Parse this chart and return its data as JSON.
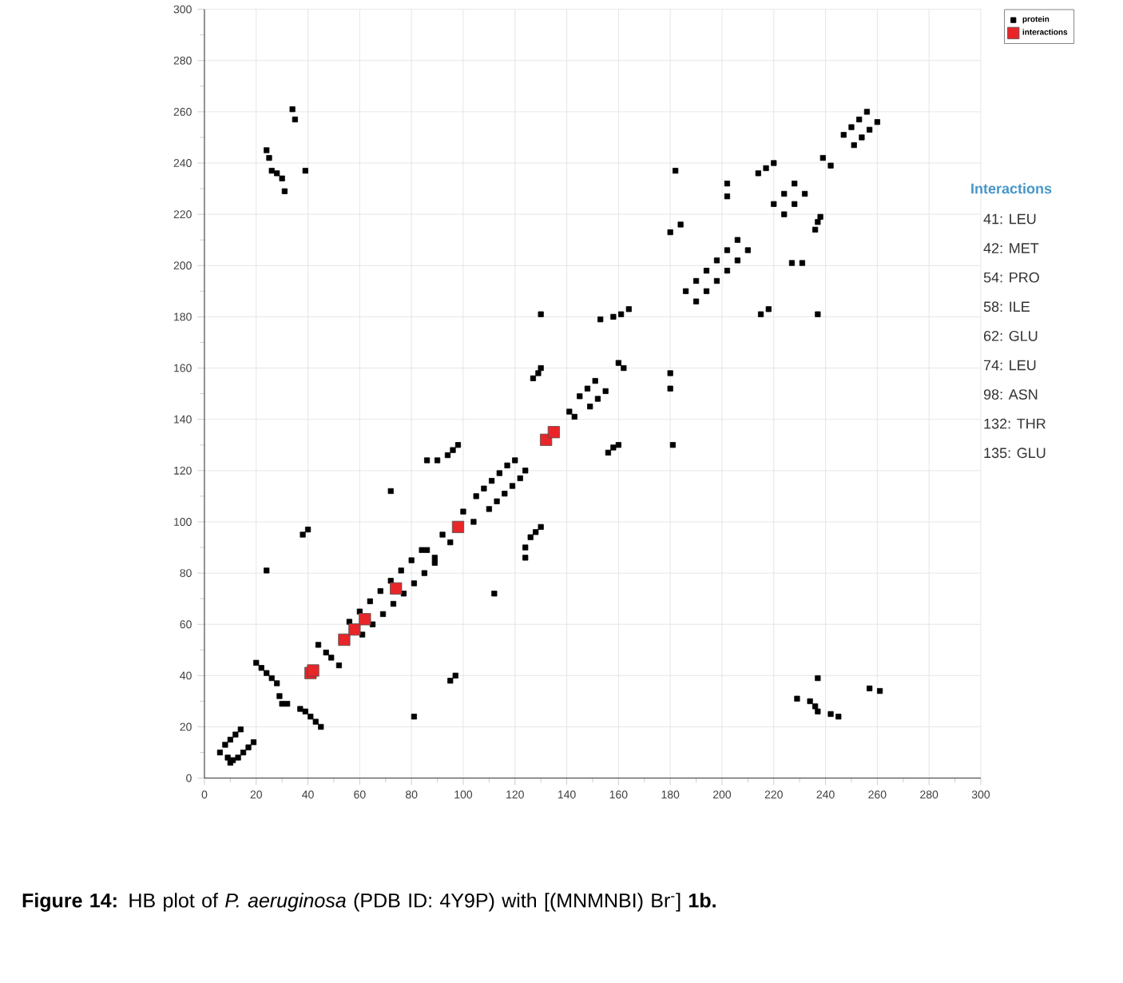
{
  "chart_data": {
    "type": "scatter",
    "marker": "square",
    "grid": true,
    "legend": "top right",
    "xlim": [
      0,
      300
    ],
    "ylim": [
      0,
      300
    ],
    "xticks": [
      0,
      20,
      40,
      60,
      80,
      100,
      120,
      140,
      160,
      180,
      200,
      220,
      240,
      260,
      280,
      300
    ],
    "yticks": [
      0,
      20,
      40,
      60,
      80,
      100,
      120,
      140,
      160,
      180,
      200,
      220,
      240,
      260,
      280,
      300
    ],
    "series": [
      {
        "name": "protein",
        "color": "#000000",
        "x": [
          6,
          8,
          10,
          12,
          14,
          10,
          13,
          15,
          17,
          19,
          9,
          11,
          20,
          22,
          24,
          26,
          28,
          29,
          30,
          32,
          37,
          39,
          41,
          43,
          45,
          24,
          81,
          38,
          40,
          95,
          97,
          24,
          25,
          26,
          28,
          30,
          31,
          34,
          35,
          39,
          245,
          242,
          237,
          236,
          234,
          229,
          261,
          257,
          237,
          44,
          47,
          52,
          49,
          56,
          61,
          60,
          65,
          64,
          69,
          68,
          73,
          72,
          77,
          76,
          81,
          80,
          85,
          84,
          89,
          86,
          89,
          92,
          95,
          100,
          104,
          72,
          112,
          86,
          90,
          94,
          96,
          98,
          124,
          124,
          126,
          128,
          130,
          105,
          108,
          111,
          114,
          117,
          110,
          113,
          116,
          119,
          122,
          120,
          124,
          127,
          129,
          130,
          130,
          156,
          158,
          160,
          181,
          141,
          143,
          145,
          148,
          151,
          149,
          152,
          155,
          153,
          180,
          180,
          158,
          161,
          164,
          160,
          162,
          186,
          190,
          194,
          198,
          202,
          206,
          190,
          194,
          198,
          202,
          206,
          210,
          180,
          184,
          215,
          218,
          202,
          202,
          227,
          231,
          220,
          224,
          228,
          224,
          228,
          232,
          214,
          217,
          220,
          236,
          237,
          238,
          182,
          237,
          239,
          242,
          247,
          250,
          253,
          256,
          251,
          254,
          257,
          260
        ],
        "values": [
          10,
          13,
          15,
          17,
          19,
          6,
          8,
          10,
          12,
          14,
          8,
          7,
          45,
          43,
          41,
          39,
          37,
          32,
          29,
          29,
          27,
          26,
          24,
          22,
          20,
          81,
          24,
          95,
          97,
          38,
          40,
          245,
          242,
          237,
          236,
          234,
          229,
          261,
          257,
          237,
          24,
          25,
          26,
          28,
          30,
          31,
          34,
          35,
          39,
          52,
          49,
          44,
          47,
          61,
          56,
          65,
          60,
          69,
          64,
          73,
          68,
          77,
          72,
          81,
          76,
          85,
          80,
          89,
          84,
          89,
          86,
          95,
          92,
          104,
          100,
          112,
          72,
          124,
          124,
          126,
          128,
          130,
          86,
          90,
          94,
          96,
          98,
          110,
          113,
          116,
          119,
          122,
          105,
          108,
          111,
          114,
          117,
          124,
          120,
          156,
          158,
          160,
          181,
          127,
          129,
          130,
          130,
          143,
          141,
          149,
          152,
          155,
          145,
          148,
          151,
          179,
          152,
          158,
          180,
          181,
          183,
          162,
          160,
          190,
          194,
          198,
          202,
          206,
          210,
          186,
          190,
          194,
          198,
          202,
          206,
          213,
          216,
          181,
          183,
          232,
          227,
          201,
          201,
          224,
          228,
          232,
          220,
          224,
          228,
          236,
          238,
          240,
          214,
          217,
          219,
          237,
          181,
          242,
          239,
          251,
          254,
          257,
          260,
          247,
          250,
          253,
          256
        ]
      },
      {
        "name": "interactions",
        "color": "#e8262a",
        "x": [
          41,
          42,
          54,
          58,
          62,
          74,
          98,
          132,
          135
        ],
        "values": [
          41,
          42,
          54,
          58,
          62,
          74,
          98,
          132,
          135
        ]
      }
    ],
    "annotations": [
      "Interactions",
      "41:  LEU",
      "42:  MET",
      "54:  PRO",
      "58:  ILE",
      "62:  GLU",
      "74:  LEU",
      "98:  ASN",
      "132:  THR",
      "135:  GLU",
      "**Figure 14:** HB plot of *P. aeruginosa* (PDB ID: 4Y9P) with [(MNMNBI) Br$^{-}$] **1b.**"
    ]
  }
}
